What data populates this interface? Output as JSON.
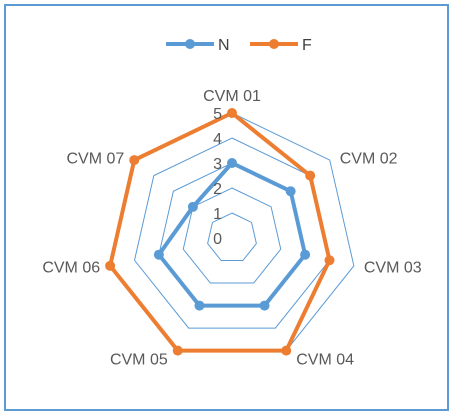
{
  "chart_data": {
    "type": "radar",
    "categories": [
      "CVM 01",
      "CVM 02",
      "CVM 03",
      "CVM 04",
      "CVM 05",
      "CVM 06",
      "CVM 07"
    ],
    "rlim": [
      0,
      5
    ],
    "ticks": [
      "0",
      "1",
      "2",
      "3",
      "4",
      "5"
    ],
    "grid": true,
    "legend_position": "top",
    "series": [
      {
        "name": "N",
        "color": "#5b9bd5",
        "values": [
          3,
          3,
          3,
          3,
          3,
          3,
          2
        ]
      },
      {
        "name": "F",
        "color": "#ed7d31",
        "values": [
          5,
          4,
          4,
          5,
          5,
          5,
          5
        ]
      }
    ],
    "grid_color": "#5b9bd5"
  }
}
